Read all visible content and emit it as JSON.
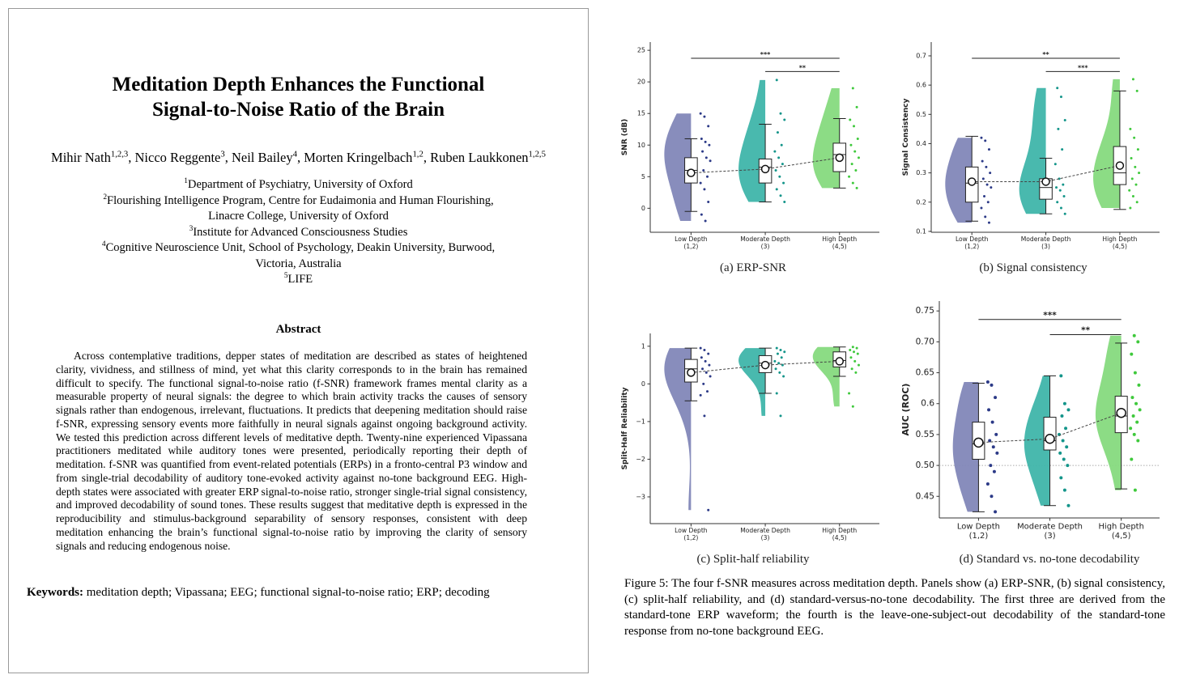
{
  "paper": {
    "title_lines": [
      "Meditation Depth Enhances the Functional",
      "Signal-to-Noise Ratio of the Brain"
    ],
    "authors": [
      {
        "name": "Mihir Nath",
        "affiliations": "1,2,3"
      },
      {
        "name": "Nicco Reggente",
        "affiliations": "3"
      },
      {
        "name": "Neil Bailey",
        "affiliations": "4"
      },
      {
        "name": "Morten Kringelbach",
        "affiliations": "1,2"
      },
      {
        "name": "Ruben Laukkonen",
        "affiliations": "1,2,5"
      }
    ],
    "author_separator": ", ",
    "affiliations": [
      {
        "mark": "1",
        "text": "Department of Psychiatry, University of Oxford"
      },
      {
        "mark": "2",
        "text": "Flourishing Intelligence Program, Centre for Eudaimonia and Human Flourishing, Linacre College, University of Oxford"
      },
      {
        "mark": "3",
        "text": "Institute for Advanced Consciousness Studies"
      },
      {
        "mark": "4",
        "text": "Cognitive Neuroscience Unit, School of Psychology, Deakin University, Burwood, Victoria, Australia"
      },
      {
        "mark": "5",
        "text": "LIFE"
      }
    ],
    "abstract_heading": "Abstract",
    "abstract": "Across contemplative traditions, depper states of meditation are described as states of heightened clarity, vividness, and stillness of mind, yet what this clarity corresponds to in the brain has remained difficult to specify. The functional signal-to-noise ratio (f-SNR) framework frames mental clarity as a measurable property of neural signals: the degree to which brain activity tracks the causes of sensory signals rather than endogenous, irrelevant, fluctuations. It predicts that deepening meditation should raise f-SNR, expressing sensory events more faithfully in neural signals against ongoing background activity. We tested this prediction across different levels of meditative depth. Twenty-nine experienced Vipassana practitioners meditated while auditory tones were presented, periodically reporting their depth of meditation. f-SNR was quantified from event-related potentials (ERPs) in a fronto-central P3 window and from single-trial decodability of auditory tone-evoked activity against no-tone background EEG. High-depth states were associated with greater ERP signal-to-noise ratio, stronger single-trial signal consistency, and improved decodability of sound tones. These results suggest that meditative depth is expressed in the reproducibility and stimulus-background separability of sensory responses, consistent with deep meditation enhancing the brain’s functional signal-to-noise ratio by improving the clarity of sensory signals and reducing endogenous noise.",
    "keywords_label": "Keywords:",
    "keywords": "meditation depth; Vipassana; EEG; functional signal-to-noise ratio; ERP; decoding"
  },
  "figure_caption": "Figure 5: The four f-SNR measures across meditation depth. Panels show (a) ERP-SNR, (b) signal consistency, (c) split-half reliability, and (d) standard-versus-no-tone decodability. The first three are derived from the standard-tone ERP waveform; the fourth is the leave-one-subject-out decodability of the standard-tone response from no-tone background EEG.",
  "chart_data": [
    {
      "type": "raincloud",
      "subcaption": "(a) ERP-SNR",
      "ylabel": "SNR (dB)",
      "categories": [
        "Low Depth",
        "Moderate Depth",
        "High Depth"
      ],
      "category_sublabels": [
        "(1,2)",
        "(3)",
        "(4,5)"
      ],
      "ylim": [
        -3.8,
        26.3
      ],
      "yticks": [
        0,
        5,
        10,
        15,
        20,
        25
      ],
      "groups": [
        {
          "color": "#8287b8",
          "point_color": "#2c3a87",
          "values": [
            15,
            14.5,
            13,
            11,
            10.5,
            10,
            9,
            8,
            7.5,
            6,
            5,
            4,
            3,
            1,
            -1,
            -2
          ],
          "box": {
            "whisker_low": -0.5,
            "q1": 4,
            "median": 6,
            "q3": 8,
            "whisker_high": 11,
            "mean": 5.6
          }
        },
        {
          "color": "#3fb5aa",
          "point_color": "#14958a",
          "values": [
            20.3,
            15,
            14,
            12,
            10,
            9,
            8,
            7,
            6,
            5,
            4,
            3,
            2,
            1
          ],
          "box": {
            "whisker_low": 1,
            "q1": 4,
            "median": 6.5,
            "q3": 7.8,
            "whisker_high": 13.3,
            "mean": 6.2
          }
        },
        {
          "color": "#86da7e",
          "point_color": "#3fc93c",
          "values": [
            19,
            16,
            14,
            13,
            11,
            10,
            9,
            8,
            7,
            6,
            5,
            4,
            3.2
          ],
          "box": {
            "whisker_low": 3.2,
            "q1": 5.8,
            "median": 8.5,
            "q3": 10.3,
            "whisker_high": 14.2,
            "mean": 8
          }
        }
      ],
      "significance": [
        {
          "between": [
            "Low Depth",
            "High Depth"
          ],
          "label": "***"
        },
        {
          "between": [
            "Moderate Depth",
            "High Depth"
          ],
          "label": "**"
        }
      ]
    },
    {
      "type": "raincloud",
      "subcaption": "(b) Signal consistency",
      "ylabel": "Signal Consistency",
      "categories": [
        "Low Depth",
        "Moderate Depth",
        "High Depth"
      ],
      "category_sublabels": [
        "(1,2)",
        "(3)",
        "(4,5)"
      ],
      "ylim": [
        0.097,
        0.747
      ],
      "yticks": [
        0.1,
        0.2,
        0.3,
        0.4,
        0.5,
        0.6,
        0.7
      ],
      "groups": [
        {
          "color": "#8287b8",
          "point_color": "#2c3a87",
          "values": [
            0.42,
            0.41,
            0.38,
            0.34,
            0.32,
            0.3,
            0.28,
            0.26,
            0.25,
            0.22,
            0.2,
            0.18,
            0.15,
            0.13
          ],
          "box": {
            "whisker_low": 0.135,
            "q1": 0.2,
            "median": 0.265,
            "q3": 0.32,
            "whisker_high": 0.425,
            "mean": 0.27
          }
        },
        {
          "color": "#3fb5aa",
          "point_color": "#14958a",
          "values": [
            0.59,
            0.56,
            0.48,
            0.45,
            0.38,
            0.33,
            0.28,
            0.26,
            0.25,
            0.24,
            0.22,
            0.2,
            0.18,
            0.16
          ],
          "box": {
            "whisker_low": 0.16,
            "q1": 0.21,
            "median": 0.25,
            "q3": 0.28,
            "whisker_high": 0.35,
            "mean": 0.27
          }
        },
        {
          "color": "#86da7e",
          "point_color": "#3fc93c",
          "values": [
            0.62,
            0.58,
            0.45,
            0.42,
            0.38,
            0.35,
            0.32,
            0.3,
            0.28,
            0.26,
            0.24,
            0.22,
            0.2,
            0.18
          ],
          "box": {
            "whisker_low": 0.175,
            "q1": 0.26,
            "median": 0.3,
            "q3": 0.39,
            "whisker_high": 0.58,
            "mean": 0.325
          }
        }
      ],
      "significance": [
        {
          "between": [
            "Low Depth",
            "High Depth"
          ],
          "label": "**"
        },
        {
          "between": [
            "Moderate Depth",
            "High Depth"
          ],
          "label": "***"
        }
      ]
    },
    {
      "type": "raincloud",
      "subcaption": "(c) Split-half reliability",
      "ylabel": "Split-Half Reliability",
      "categories": [
        "Low Depth",
        "Moderate Depth",
        "High Depth"
      ],
      "category_sublabels": [
        "(1,2)",
        "(3)",
        "(4,5)"
      ],
      "ylim": [
        -3.71,
        1.34
      ],
      "yticks": [
        {
          "value": -3,
          "label": "−3"
        },
        {
          "value": -2,
          "label": "−2"
        },
        {
          "value": -1,
          "label": "−1"
        },
        0,
        1
      ],
      "groups": [
        {
          "color": "#8287b8",
          "point_color": "#2c3a87",
          "values": [
            0.95,
            0.9,
            0.8,
            0.7,
            0.6,
            0.5,
            0.4,
            0.3,
            0.2,
            0,
            -0.2,
            -0.3,
            -0.85,
            -3.35
          ],
          "box": {
            "whisker_low": -0.45,
            "q1": 0.05,
            "median": 0.4,
            "q3": 0.65,
            "whisker_high": 0.95,
            "mean": 0.3
          }
        },
        {
          "color": "#3fb5aa",
          "point_color": "#14958a",
          "values": [
            0.95,
            0.9,
            0.85,
            0.8,
            0.7,
            0.6,
            0.55,
            0.5,
            0.4,
            0.3,
            0.2,
            -0.25,
            -0.85
          ],
          "box": {
            "whisker_low": -0.25,
            "q1": 0.3,
            "median": 0.55,
            "q3": 0.75,
            "whisker_high": 0.95,
            "mean": 0.5
          }
        },
        {
          "color": "#86da7e",
          "point_color": "#3fc93c",
          "values": [
            0.98,
            0.95,
            0.9,
            0.85,
            0.8,
            0.7,
            0.6,
            0.5,
            0.4,
            0.3,
            -0.25,
            -0.6
          ],
          "box": {
            "whisker_low": 0.2,
            "q1": 0.45,
            "median": 0.62,
            "q3": 0.85,
            "whisker_high": 0.98,
            "mean": 0.6
          }
        }
      ],
      "significance": []
    },
    {
      "type": "raincloud",
      "subcaption": "(d) Standard vs. no-tone decodability",
      "ylabel": "AUC (ROC)",
      "categories": [
        "Low Depth",
        "Moderate Depth",
        "High Depth"
      ],
      "category_sublabels": [
        "(1,2)",
        "(3)",
        "(4,5)"
      ],
      "ylim": [
        0.415,
        0.766
      ],
      "yticks": [
        0.45,
        {
          "value": 0.5,
          "label": "0.50"
        },
        0.55,
        0.6,
        0.65,
        {
          "value": 0.7,
          "label": "0.70"
        },
        0.75
      ],
      "reference_line": 0.5,
      "groups": [
        {
          "color": "#8287b8",
          "point_color": "#2c3a87",
          "values": [
            0.635,
            0.63,
            0.61,
            0.59,
            0.57,
            0.55,
            0.54,
            0.53,
            0.52,
            0.5,
            0.49,
            0.47,
            0.45,
            0.425
          ],
          "box": {
            "whisker_low": 0.425,
            "q1": 0.51,
            "median": 0.535,
            "q3": 0.57,
            "whisker_high": 0.633,
            "mean": 0.537
          }
        },
        {
          "color": "#3fb5aa",
          "point_color": "#14958a",
          "values": [
            0.645,
            0.6,
            0.59,
            0.58,
            0.56,
            0.55,
            0.54,
            0.53,
            0.52,
            0.51,
            0.5,
            0.48,
            0.46,
            0.435
          ],
          "box": {
            "whisker_low": 0.435,
            "q1": 0.525,
            "median": 0.54,
            "q3": 0.578,
            "whisker_high": 0.645,
            "mean": 0.543
          }
        },
        {
          "color": "#86da7e",
          "point_color": "#3fc93c",
          "values": [
            0.71,
            0.7,
            0.68,
            0.65,
            0.63,
            0.61,
            0.6,
            0.59,
            0.58,
            0.57,
            0.56,
            0.55,
            0.54,
            0.51,
            0.46
          ],
          "box": {
            "whisker_low": 0.462,
            "q1": 0.553,
            "median": 0.58,
            "q3": 0.612,
            "whisker_high": 0.698,
            "mean": 0.585
          }
        }
      ],
      "significance": [
        {
          "between": [
            "Low Depth",
            "High Depth"
          ],
          "label": "***"
        },
        {
          "between": [
            "Moderate Depth",
            "High Depth"
          ],
          "label": "**"
        }
      ]
    }
  ]
}
